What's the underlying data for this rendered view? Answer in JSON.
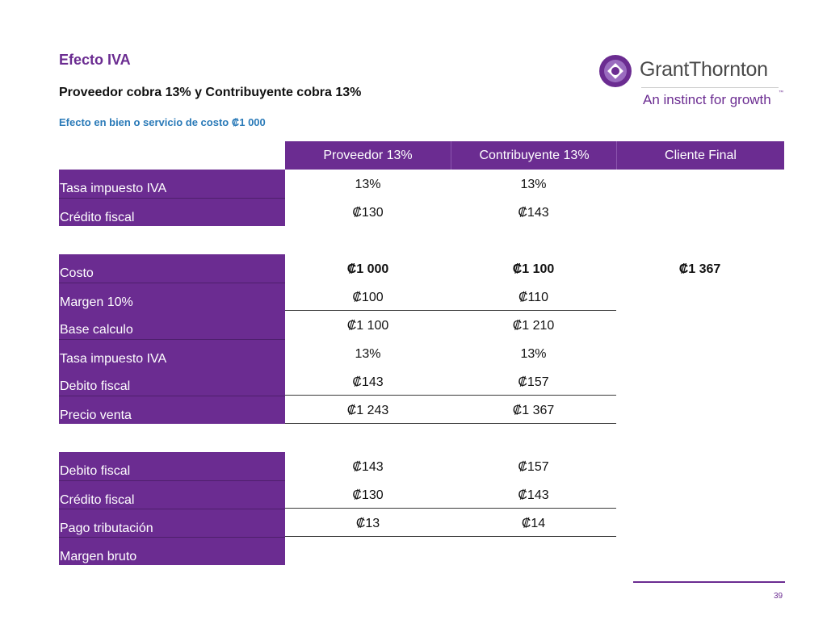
{
  "slide": {
    "title": "Efecto IVA",
    "subtitle": "Proveedor cobra 13% y Contribuyente cobra 13%",
    "note": "Efecto en bien o servicio de costo ₡1 000",
    "page_number": "39"
  },
  "logo": {
    "brand": "GrantThornton",
    "tagline": "An instinct for growth",
    "trademark": "™",
    "colors": {
      "purple": "#6b2c91",
      "grey": "#4a4a4a"
    }
  },
  "table": {
    "headers": [
      "Proveedor 13%",
      "Contribuyente 13%",
      "Cliente Final"
    ],
    "section1": [
      {
        "label": "Tasa impuesto IVA",
        "values": [
          "13%",
          "13%",
          ""
        ]
      },
      {
        "label": "Crédito fiscal",
        "values": [
          "₡130",
          "₡143",
          ""
        ]
      }
    ],
    "section2": [
      {
        "label": "Costo",
        "values": [
          "₡1 000",
          "₡1 100",
          "₡1 367"
        ]
      },
      {
        "label": "Margen 10%",
        "values": [
          "₡100",
          "₡110",
          ""
        ]
      },
      {
        "label": "Base calculo",
        "values": [
          "₡1 100",
          "₡1 210",
          ""
        ]
      },
      {
        "label": "Tasa impuesto IVA",
        "values": [
          "13%",
          "13%",
          ""
        ]
      },
      {
        "label": "Debito fiscal",
        "values": [
          "₡143",
          "₡157",
          ""
        ]
      },
      {
        "label": "Precio venta",
        "values": [
          "₡1 243",
          "₡1 367",
          ""
        ]
      }
    ],
    "section3": [
      {
        "label": "Debito fiscal",
        "values": [
          "₡143",
          "₡157",
          ""
        ]
      },
      {
        "label": "Crédito fiscal",
        "values": [
          "₡130",
          "₡143",
          ""
        ]
      },
      {
        "label": "Pago tributación",
        "values": [
          "₡13",
          "₡14",
          ""
        ]
      },
      {
        "label": "Margen bruto",
        "values": [
          "",
          "",
          ""
        ]
      }
    ]
  },
  "colors": {
    "accent": "#6b2c91",
    "note": "#2a7ab8"
  }
}
